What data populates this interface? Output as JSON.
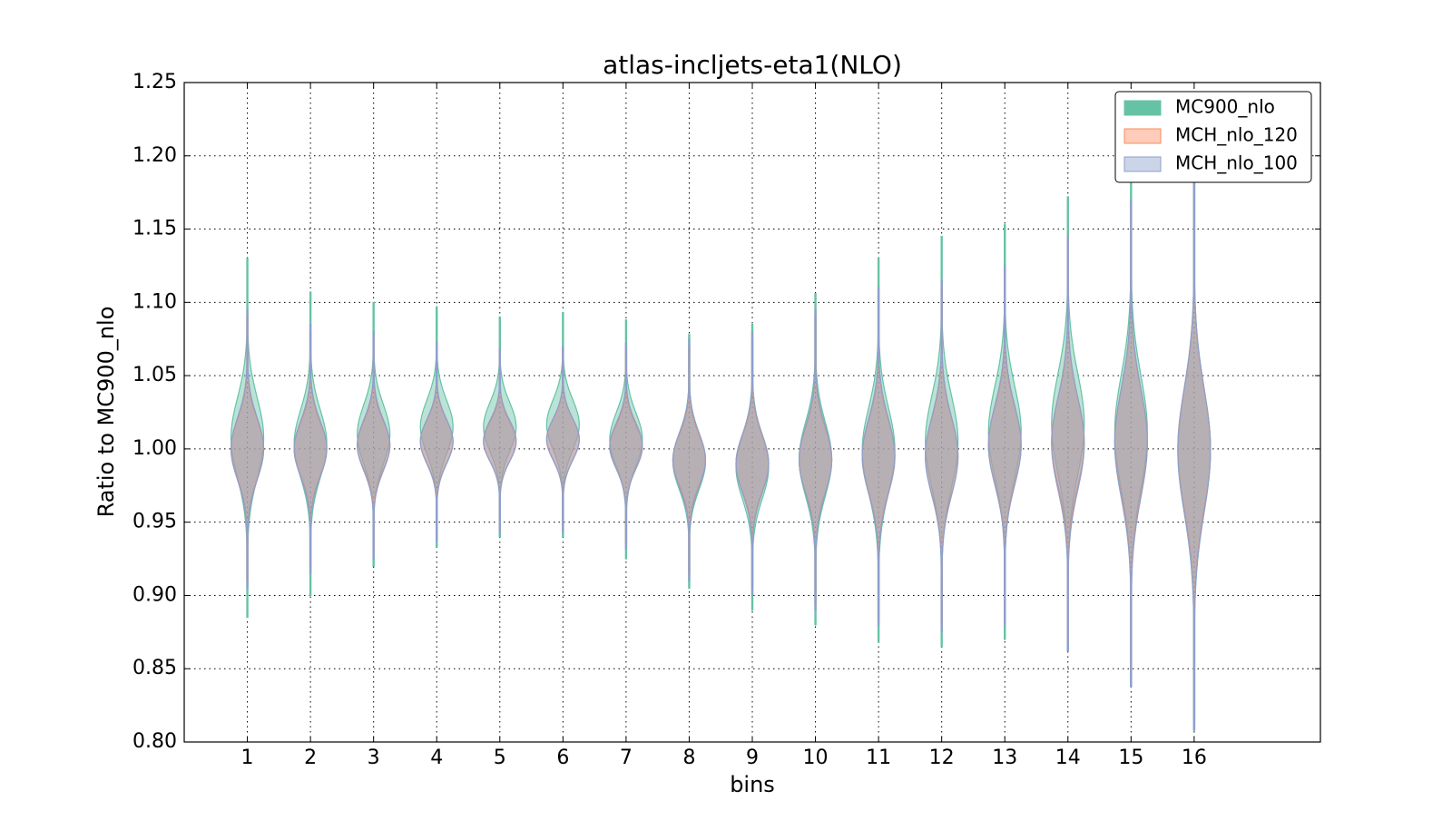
{
  "chart_data": {
    "type": "violin",
    "title": "atlas-incljets-eta1(NLO)",
    "x_label": "bins",
    "y_label": "Ratio to MC900_nlo",
    "categories": [
      "1",
      "2",
      "3",
      "4",
      "5",
      "6",
      "7",
      "8",
      "9",
      "10",
      "11",
      "12",
      "13",
      "14",
      "15",
      "16"
    ],
    "series": [
      {
        "name": "MC900_nlo",
        "color": "#66c2a5",
        "min": [
          0.885,
          0.9,
          0.92,
          0.933,
          0.94,
          0.94,
          0.925,
          0.905,
          0.89,
          0.88,
          0.868,
          0.865,
          0.87,
          0.862,
          0.838,
          0.808
        ],
        "max": [
          1.13,
          1.107,
          1.1,
          1.097,
          1.09,
          1.093,
          1.088,
          1.078,
          1.085,
          1.106,
          1.13,
          1.145,
          1.153,
          1.172,
          1.185,
          1.19
        ]
      },
      {
        "name": "MCH_nlo_120",
        "color": "#fc8d62",
        "min": [
          0.91,
          0.92,
          0.93,
          0.94,
          0.945,
          0.945,
          0.935,
          0.915,
          0.905,
          0.895,
          0.885,
          0.88,
          0.885,
          0.87,
          0.845,
          0.815
        ],
        "max": [
          1.09,
          1.08,
          1.075,
          1.07,
          1.065,
          1.068,
          1.068,
          1.07,
          1.075,
          1.09,
          1.105,
          1.11,
          1.12,
          1.14,
          1.165,
          1.185
        ]
      },
      {
        "name": "MCH_nlo_100",
        "color": "#8da0cb",
        "min": [
          0.905,
          0.915,
          0.925,
          0.937,
          0.943,
          0.943,
          0.932,
          0.91,
          0.9,
          0.89,
          0.88,
          0.875,
          0.88,
          0.862,
          0.838,
          0.808
        ],
        "max": [
          1.095,
          1.085,
          1.08,
          1.073,
          1.068,
          1.07,
          1.072,
          1.075,
          1.08,
          1.095,
          1.11,
          1.115,
          1.125,
          1.145,
          1.17,
          1.19
        ]
      }
    ],
    "xlim": [
      0,
      18
    ],
    "ylim": [
      0.8,
      1.25
    ],
    "yticks": [
      {
        "value": 0.8,
        "label": "0.80"
      },
      0.85,
      {
        "value": 0.9,
        "label": "0.90"
      },
      0.95,
      {
        "value": 1.0,
        "label": "1.00"
      },
      1.05,
      {
        "value": 1.1,
        "label": "1.10"
      },
      1.15,
      {
        "value": 1.2,
        "label": "1.20"
      },
      1.25
    ],
    "grid": true,
    "legend": "upper right"
  }
}
